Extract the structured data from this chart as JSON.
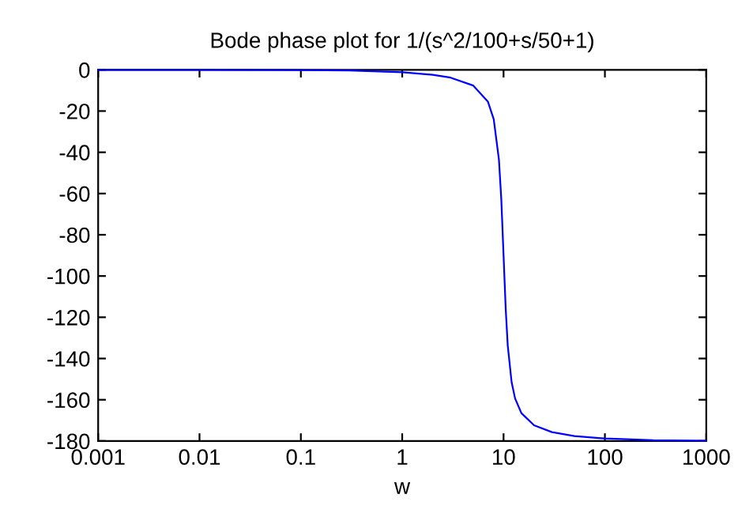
{
  "chart_data": {
    "type": "line",
    "title": "Bode phase plot for 1/(s^2/100+s/50+1)",
    "xlabel": "w",
    "log": "x",
    "series": [
      {
        "color": "#0000ff",
        "x": [
          0.001,
          0.01,
          0.1,
          0.3,
          1,
          2,
          3,
          5,
          7,
          8,
          9,
          9.5,
          10,
          10.5,
          11,
          12,
          13,
          15,
          20,
          30,
          50,
          100,
          300,
          1000
        ],
        "values": [
          0,
          0,
          -0.1,
          -0.3,
          -1.2,
          -2.4,
          -3.8,
          -7.6,
          -15.4,
          -24,
          -43.5,
          -62.8,
          -90,
          -116,
          -133.7,
          -151.4,
          -159.4,
          -166.5,
          -172.4,
          -175.7,
          -177.6,
          -178.8,
          -179.6,
          -179.9
        ]
      }
    ],
    "xlim": [
      0.001,
      1000
    ],
    "xticks": [
      0.001,
      0.01,
      0.1,
      1,
      10,
      100,
      1000
    ],
    "ylim": [
      -180,
      0
    ],
    "yticks": [
      -180,
      -160,
      -140,
      -120,
      -100,
      -80,
      -60,
      -40,
      -20,
      0
    ],
    "grid": false,
    "legend": false
  }
}
